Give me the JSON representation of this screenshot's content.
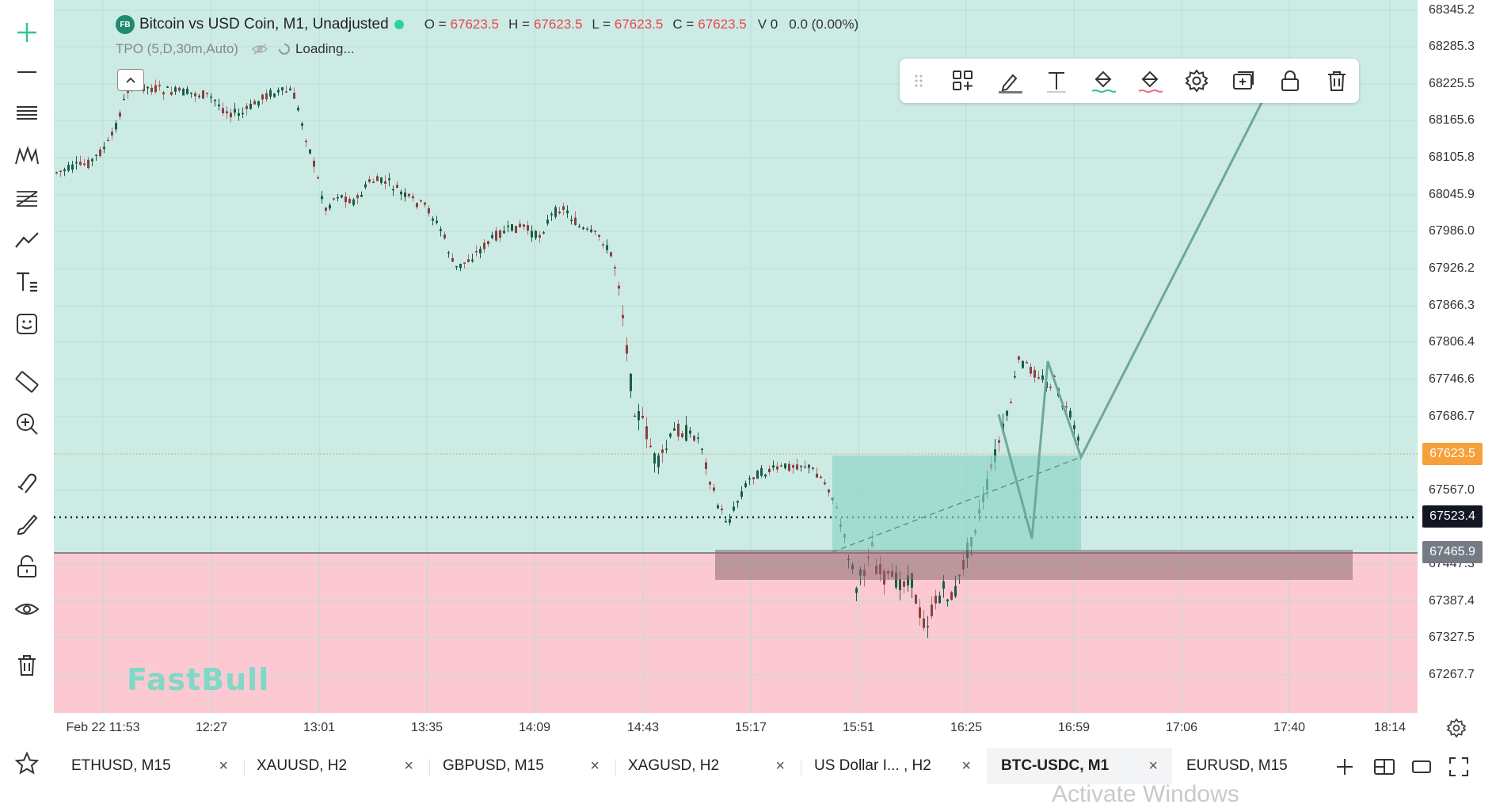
{
  "header": {
    "logo_text": "FB",
    "symbol_title": "Bitcoin vs USD Coin, M1, Unadjusted",
    "ohlc": [
      {
        "key": "O =",
        "value": "67623.5"
      },
      {
        "key": "H =",
        "value": "67623.5"
      },
      {
        "key": "L =",
        "value": "67623.5"
      },
      {
        "key": "C =",
        "value": "67623.5"
      }
    ],
    "volume": "V 0",
    "change": "0.0 (0.00%)",
    "indicator": "TPO (5,D,30m,Auto)",
    "loading": "Loading..."
  },
  "price_axis": {
    "labels": [
      "68345.2",
      "68285.3",
      "68225.5",
      "68165.6",
      "68105.8",
      "68045.9",
      "67986.0",
      "67926.2",
      "67866.3",
      "67806.4",
      "67746.6",
      "67686.7",
      "67567.0",
      "67447.3",
      "67387.4",
      "67327.5",
      "67267.7"
    ],
    "current_price_tag": "67623.5",
    "crosshair_tag": "67523.4",
    "level_tag": "67465.9",
    "colors": {
      "current": "#f5a03a",
      "crosshair": "#131722",
      "level": "#757b85"
    }
  },
  "time_axis": {
    "labels": [
      "Feb 22 11:53",
      "12:27",
      "13:01",
      "13:35",
      "14:09",
      "14:43",
      "15:17",
      "15:51",
      "16:25",
      "16:59",
      "17:06",
      "17:40",
      "18:14"
    ]
  },
  "left_tools": [
    "plus-crosshair-icon",
    "horizontal-line-icon",
    "parallel-channel-icon",
    "pattern-icon",
    "fib-retracement-icon",
    "trend-line-icon",
    "text-tool-icon",
    "emoji-icon",
    "ruler-icon",
    "zoom-in-icon",
    "magnet-icon",
    "brush-icon",
    "lock-open-icon",
    "eye-icon",
    "trash-icon"
  ],
  "drawing_toolbar": [
    "drag-handle-icon",
    "add-template-icon",
    "pencil-icon",
    "text-icon",
    "fill-color-icon",
    "line-color-icon",
    "settings-icon",
    "clone-icon",
    "lock-icon",
    "delete-icon"
  ],
  "tabs": [
    {
      "label": "ETHUSD, M15",
      "active": false
    },
    {
      "label": "XAUUSD, H2",
      "active": false
    },
    {
      "label": "GBPUSD, M15",
      "active": false
    },
    {
      "label": "XAGUSD, H2",
      "active": false
    },
    {
      "label": "US Dollar I... , H2",
      "active": false
    },
    {
      "label": "BTC-USDC, M1",
      "active": true
    },
    {
      "label": "EURUSD, M15",
      "active": false
    }
  ],
  "tab_close": "×",
  "tab_bar_icons": [
    "add-tab-icon",
    "split-layout-icon",
    "window-icon",
    "fullscreen-icon"
  ],
  "watermark": "FastBull",
  "os_overlay": "Activate Windows",
  "colors": {
    "upper_zone": "#cdebe5",
    "lower_zone": "#fcc9d3",
    "bull_candle": "#1a5c45",
    "bear_candle": "#8c3f3f",
    "accent": "#26a69a"
  }
}
